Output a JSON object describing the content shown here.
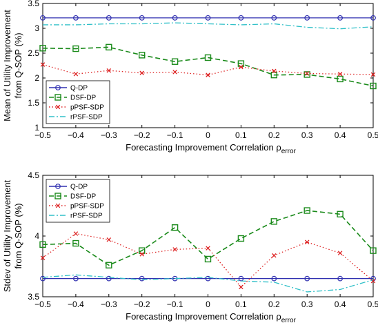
{
  "chart_data": [
    {
      "type": "line",
      "xlabel": "Forecasting Improvement Correlation",
      "xlabel_symbol": "ρ",
      "xlabel_subscript": "error",
      "ylabel_line1": "Mean of Utility Improvement",
      "ylabel_line2": "from Q-SOP (%)",
      "xlim": [
        -0.5,
        0.5
      ],
      "ylim": [
        1,
        3.5
      ],
      "x": [
        -0.5,
        -0.4,
        -0.3,
        -0.2,
        -0.1,
        0,
        0.1,
        0.2,
        0.3,
        0.4,
        0.5
      ],
      "xticks": [
        "−0.5",
        "−0.4",
        "−0.3",
        "−0.2",
        "−0.1",
        "0",
        "0.1",
        "0.2",
        "0.3",
        "0.4",
        "0.5"
      ],
      "yticks": [
        {
          "v": 1,
          "label": "1"
        },
        {
          "v": 1.5,
          "label": "1.5"
        },
        {
          "v": 2,
          "label": "2"
        },
        {
          "v": 2.5,
          "label": "2.5"
        },
        {
          "v": 3,
          "label": "3"
        },
        {
          "v": 3.5,
          "label": "3.5"
        }
      ],
      "grid": false,
      "legend_position": "lower-left",
      "series": [
        {
          "name": "Q-DP",
          "color": "#3030b0",
          "style": "solid",
          "marker": "circle",
          "values": [
            3.21,
            3.21,
            3.21,
            3.21,
            3.21,
            3.21,
            3.21,
            3.21,
            3.21,
            3.21,
            3.21
          ]
        },
        {
          "name": "DSF-DP",
          "color": "#1a8a1a",
          "style": "dashed",
          "marker": "square",
          "values": [
            2.6,
            2.59,
            2.62,
            2.46,
            2.33,
            2.41,
            2.29,
            2.06,
            2.07,
            1.98,
            1.84
          ]
        },
        {
          "name": "pPSF-SDP",
          "color": "#dd2222",
          "style": "dotted",
          "marker": "x",
          "values": [
            2.27,
            2.08,
            2.15,
            2.1,
            2.12,
            2.06,
            2.22,
            2.14,
            2.09,
            2.08,
            2.07
          ]
        },
        {
          "name": "rPSF-SDP",
          "color": "#30c0c8",
          "style": "dashdot",
          "marker": "none",
          "values": [
            3.07,
            3.07,
            3.09,
            3.09,
            3.11,
            3.09,
            3.07,
            3.09,
            3.02,
            2.99,
            3.03
          ]
        }
      ]
    },
    {
      "type": "line",
      "xlabel": "Forecasting Improvement Correlation",
      "xlabel_symbol": "ρ",
      "xlabel_subscript": "error",
      "ylabel_line1": "Stdev of Utility Improvement",
      "ylabel_line2": "from Q-SOP (%)",
      "xlim": [
        -0.5,
        0.5
      ],
      "ylim": [
        3.5,
        4.5
      ],
      "x": [
        -0.5,
        -0.4,
        -0.3,
        -0.2,
        -0.1,
        0,
        0.1,
        0.2,
        0.3,
        0.4,
        0.5
      ],
      "xticks": [
        "−0.5",
        "−0.4",
        "−0.3",
        "−0.2",
        "−0.1",
        "0",
        "0.1",
        "0.2",
        "0.3",
        "0.4",
        "0.5"
      ],
      "yticks": [
        {
          "v": 3.5,
          "label": "3.5"
        },
        {
          "v": 4,
          "label": "4"
        },
        {
          "v": 4.5,
          "label": "4.5"
        }
      ],
      "grid": false,
      "legend_position": "upper-left",
      "series": [
        {
          "name": "Q-DP",
          "color": "#3030b0",
          "style": "solid",
          "marker": "circle",
          "values": [
            3.65,
            3.65,
            3.65,
            3.65,
            3.65,
            3.65,
            3.65,
            3.65,
            3.65,
            3.65,
            3.65
          ]
        },
        {
          "name": "DSF-DP",
          "color": "#1a8a1a",
          "style": "dashed",
          "marker": "square",
          "values": [
            3.93,
            3.94,
            3.76,
            3.88,
            4.07,
            3.81,
            3.98,
            4.12,
            4.21,
            4.18,
            3.88
          ]
        },
        {
          "name": "pPSF-SDP",
          "color": "#dd2222",
          "style": "dotted",
          "marker": "x",
          "values": [
            3.82,
            4.02,
            3.97,
            3.85,
            3.89,
            3.9,
            3.58,
            3.84,
            3.95,
            3.86,
            3.63
          ]
        },
        {
          "name": "rPSF-SDP",
          "color": "#30c0c8",
          "style": "dashdot",
          "marker": "none",
          "values": [
            3.66,
            3.68,
            3.66,
            3.64,
            3.65,
            3.66,
            3.63,
            3.62,
            3.54,
            3.56,
            3.64
          ]
        }
      ]
    }
  ]
}
